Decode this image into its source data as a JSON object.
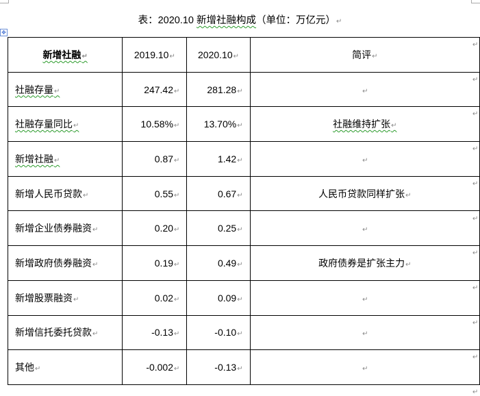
{
  "title": {
    "prefix": "表：2020.10 ",
    "emph": "新增社融构成",
    "suffix": "（单位：万亿元）"
  },
  "table": {
    "headers": [
      "新增社融",
      "2019.10",
      "2020.10",
      "简评"
    ],
    "rows": [
      {
        "item": "社融存量",
        "y2019": "247.42",
        "y2020": "281.28",
        "comment": ""
      },
      {
        "item": "社融存量同比",
        "y2019": "10.58%",
        "y2020": "13.70%",
        "comment": "社融维持扩张"
      },
      {
        "item": "新增社融",
        "y2019": "0.87",
        "y2020": "1.42",
        "comment": ""
      },
      {
        "item": "新增人民币贷款",
        "y2019": "0.55",
        "y2020": "0.67",
        "comment": "人民币贷款同样扩张"
      },
      {
        "item": "新增企业债券融资",
        "y2019": "0.20",
        "y2020": "0.25",
        "comment": ""
      },
      {
        "item": "新增政府债券融资",
        "y2019": "0.19",
        "y2020": "0.49",
        "comment": "政府债券是扩张主力"
      },
      {
        "item": "新增股票融资",
        "y2019": "0.02",
        "y2020": "0.09",
        "comment": ""
      },
      {
        "item": "新增信托委托贷款",
        "y2019": "-0.13",
        "y2020": "-0.10",
        "comment": ""
      },
      {
        "item": "其他",
        "y2019": "-0.002",
        "y2020": "-0.13",
        "comment": ""
      }
    ]
  }
}
